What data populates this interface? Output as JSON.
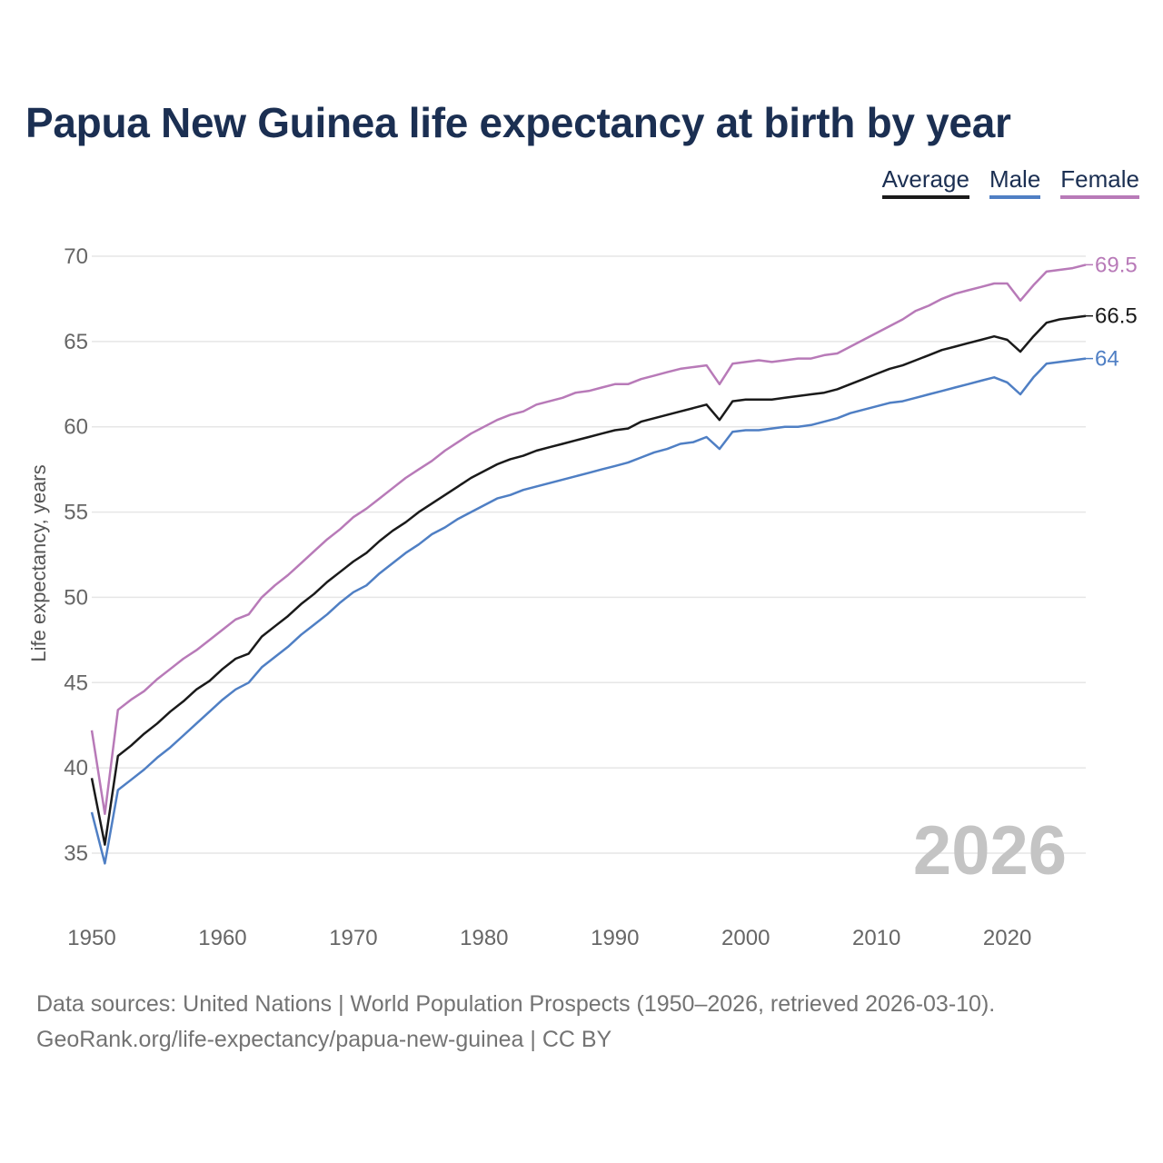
{
  "title": "Papua New Guinea life expectancy at birth by year",
  "legend": [
    {
      "label": "Average",
      "color": "#1a1a1a"
    },
    {
      "label": "Male",
      "color": "#4f7fc4"
    },
    {
      "label": "Female",
      "color": "#b87ab8"
    }
  ],
  "footer": {
    "line1": "Data sources: United Nations | World Population Prospects (1950–2026, retrieved 2026-03-10).",
    "line2": "GeoRank.org/life-expectancy/papua-new-guinea | CC BY"
  },
  "chart_data": {
    "type": "line",
    "title": "Papua New Guinea life expectancy at birth by year",
    "xlabel": "",
    "ylabel": "Life expectancy, years",
    "xlim": [
      1950,
      2026
    ],
    "ylim": [
      33,
      71
    ],
    "grid": true,
    "yticks": [
      35,
      40,
      45,
      50,
      55,
      60,
      65,
      70
    ],
    "xticks": [
      1950,
      1960,
      1970,
      1980,
      1990,
      2000,
      2010,
      2020
    ],
    "year_display": "2026",
    "end_labels": {
      "Average": "66.5",
      "Male": "64",
      "Female": "69.5"
    },
    "x": [
      1950,
      1951,
      1952,
      1953,
      1954,
      1955,
      1956,
      1957,
      1958,
      1959,
      1960,
      1961,
      1962,
      1963,
      1964,
      1965,
      1966,
      1967,
      1968,
      1969,
      1970,
      1971,
      1972,
      1973,
      1974,
      1975,
      1976,
      1977,
      1978,
      1979,
      1980,
      1981,
      1982,
      1983,
      1984,
      1985,
      1986,
      1987,
      1988,
      1989,
      1990,
      1991,
      1992,
      1993,
      1994,
      1995,
      1996,
      1997,
      1998,
      1999,
      2000,
      2001,
      2002,
      2003,
      2004,
      2005,
      2006,
      2007,
      2008,
      2009,
      2010,
      2011,
      2012,
      2013,
      2014,
      2015,
      2016,
      2017,
      2018,
      2019,
      2020,
      2021,
      2022,
      2023,
      2024,
      2025,
      2026
    ],
    "series": [
      {
        "name": "Female",
        "color": "#b87ab8",
        "values": [
          42.2,
          37.3,
          43.4,
          44.0,
          44.5,
          45.2,
          45.8,
          46.4,
          46.9,
          47.5,
          48.1,
          48.7,
          49.0,
          50.0,
          50.7,
          51.3,
          52.0,
          52.7,
          53.4,
          54.0,
          54.7,
          55.2,
          55.8,
          56.4,
          57.0,
          57.5,
          58.0,
          58.6,
          59.1,
          59.6,
          60.0,
          60.4,
          60.7,
          60.9,
          61.3,
          61.5,
          61.7,
          62.0,
          62.1,
          62.3,
          62.5,
          62.5,
          62.8,
          63.0,
          63.2,
          63.4,
          63.5,
          63.6,
          62.5,
          63.7,
          63.8,
          63.9,
          63.8,
          63.9,
          64.0,
          64.0,
          64.2,
          64.3,
          64.7,
          65.1,
          65.5,
          65.9,
          66.3,
          66.8,
          67.1,
          67.5,
          67.8,
          68.0,
          68.2,
          68.4,
          68.4,
          67.4,
          68.3,
          69.1,
          69.2,
          69.3,
          69.5
        ]
      },
      {
        "name": "Average",
        "color": "#1a1a1a",
        "values": [
          39.4,
          35.5,
          40.7,
          41.3,
          42.0,
          42.6,
          43.3,
          43.9,
          44.6,
          45.1,
          45.8,
          46.4,
          46.7,
          47.7,
          48.3,
          48.9,
          49.6,
          50.2,
          50.9,
          51.5,
          52.1,
          52.6,
          53.3,
          53.9,
          54.4,
          55.0,
          55.5,
          56.0,
          56.5,
          57.0,
          57.4,
          57.8,
          58.1,
          58.3,
          58.6,
          58.8,
          59.0,
          59.2,
          59.4,
          59.6,
          59.8,
          59.9,
          60.3,
          60.5,
          60.7,
          60.9,
          61.1,
          61.3,
          60.4,
          61.5,
          61.6,
          61.6,
          61.6,
          61.7,
          61.8,
          61.9,
          62.0,
          62.2,
          62.5,
          62.8,
          63.1,
          63.4,
          63.6,
          63.9,
          64.2,
          64.5,
          64.7,
          64.9,
          65.1,
          65.3,
          65.1,
          64.4,
          65.3,
          66.1,
          66.3,
          66.4,
          66.5
        ]
      },
      {
        "name": "Male",
        "color": "#4f7fc4",
        "values": [
          37.4,
          34.4,
          38.7,
          39.3,
          39.9,
          40.6,
          41.2,
          41.9,
          42.6,
          43.3,
          44.0,
          44.6,
          45.0,
          45.9,
          46.5,
          47.1,
          47.8,
          48.4,
          49.0,
          49.7,
          50.3,
          50.7,
          51.4,
          52.0,
          52.6,
          53.1,
          53.7,
          54.1,
          54.6,
          55.0,
          55.4,
          55.8,
          56.0,
          56.3,
          56.5,
          56.7,
          56.9,
          57.1,
          57.3,
          57.5,
          57.7,
          57.9,
          58.2,
          58.5,
          58.7,
          59.0,
          59.1,
          59.4,
          58.7,
          59.7,
          59.8,
          59.8,
          59.9,
          60.0,
          60.0,
          60.1,
          60.3,
          60.5,
          60.8,
          61.0,
          61.2,
          61.4,
          61.5,
          61.7,
          61.9,
          62.1,
          62.3,
          62.5,
          62.7,
          62.9,
          62.6,
          61.9,
          62.9,
          63.7,
          63.8,
          63.9,
          64.0
        ]
      }
    ]
  }
}
